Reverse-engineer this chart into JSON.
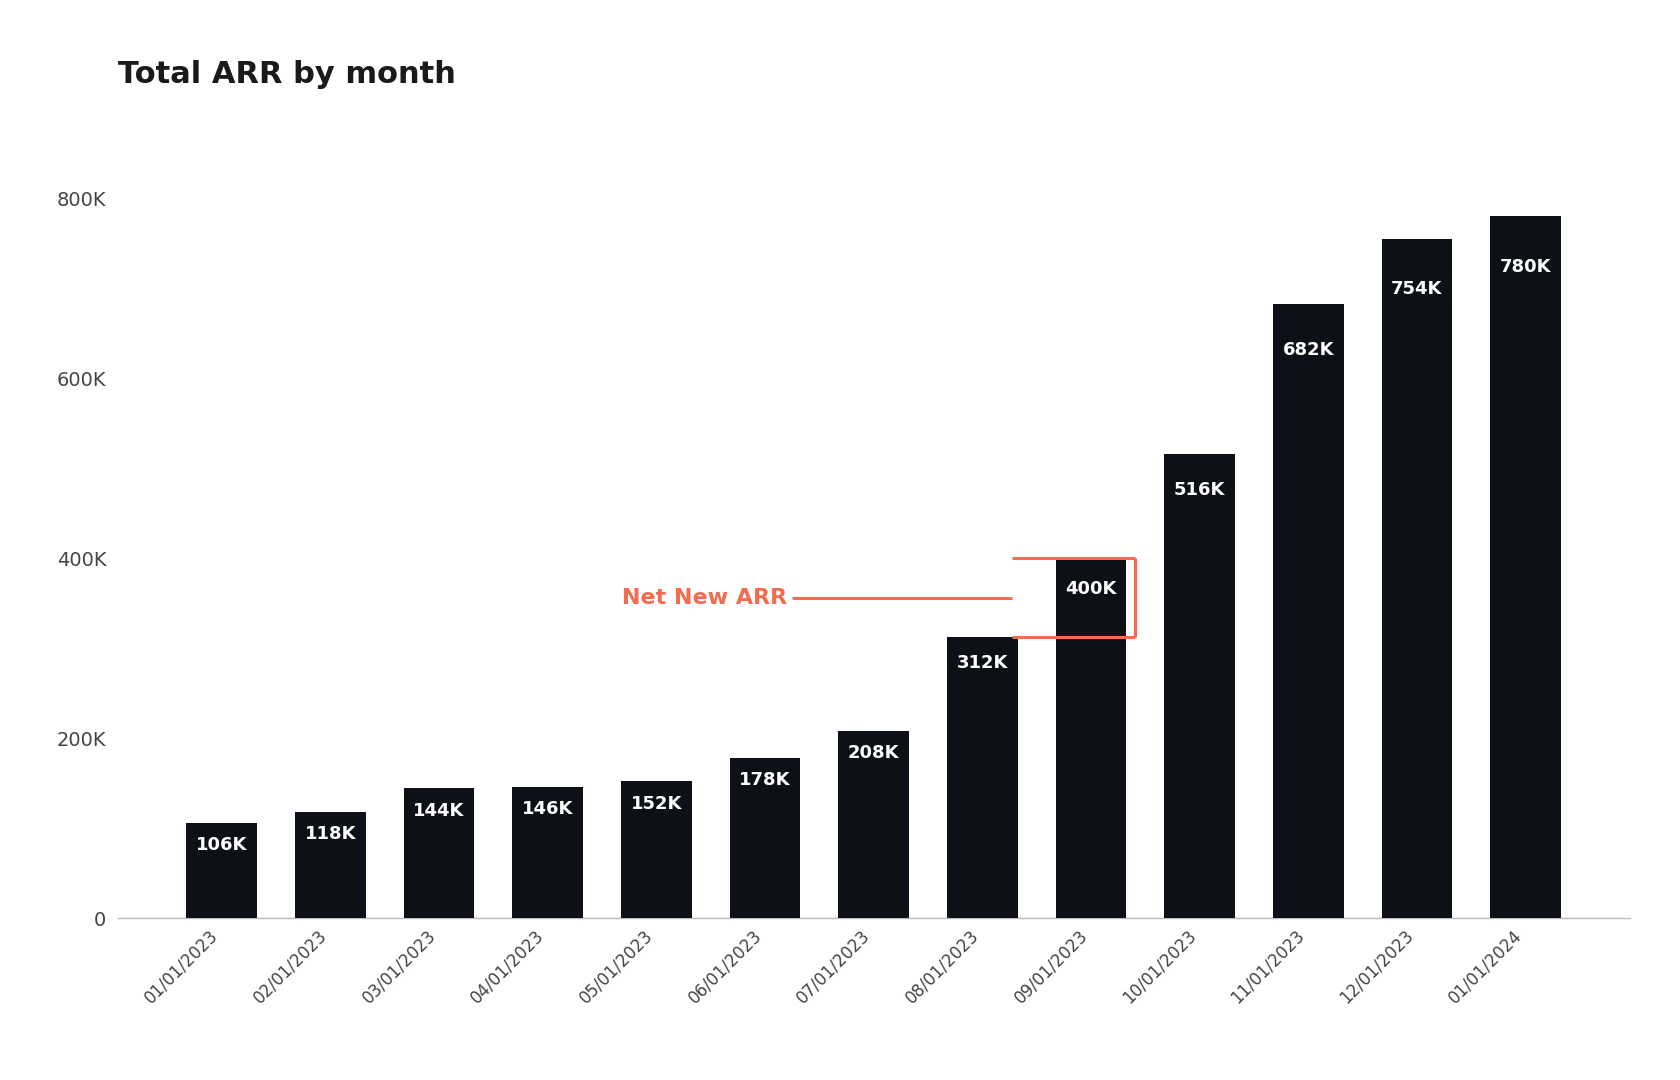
{
  "title": "Total ARR by month",
  "categories": [
    "01/01/2023",
    "02/01/2023",
    "03/01/2023",
    "04/01/2023",
    "05/01/2023",
    "06/01/2023",
    "07/01/2023",
    "08/01/2023",
    "09/01/2023",
    "10/01/2023",
    "11/01/2023",
    "12/01/2023",
    "01/01/2024"
  ],
  "values": [
    106000,
    118000,
    144000,
    146000,
    152000,
    178000,
    208000,
    312000,
    400000,
    516000,
    682000,
    754000,
    780000
  ],
  "labels": [
    "106K",
    "118K",
    "144K",
    "146K",
    "152K",
    "178K",
    "208K",
    "312K",
    "400K",
    "516K",
    "682K",
    "754K",
    "780K"
  ],
  "bar_color": "#0d1117",
  "text_color": "#ffffff",
  "title_color": "#1a1a1a",
  "background_color": "#ffffff",
  "ytick_labels": [
    "0",
    "200K",
    "400K",
    "600K",
    "800K"
  ],
  "ytick_values": [
    0,
    200000,
    400000,
    600000,
    800000
  ],
  "ylim": [
    0,
    900000
  ],
  "annotation_text": "Net New ARR",
  "annotation_color": "#f26c4f",
  "bracket_bar1_idx": 7,
  "bracket_bar2_idx": 8,
  "bracket_bar1_val": 312000,
  "bracket_bar2_val": 400000
}
